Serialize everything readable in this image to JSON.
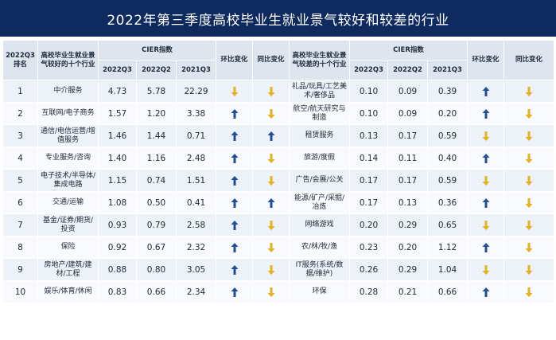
{
  "title": "2022年第三季度高校毕业生就业景气较好和较差的行业",
  "headers": {
    "rank": "2022Q3排名",
    "good_industry": "高校毕业生就业景气较好的十个行业",
    "bad_industry": "高校毕业生就业景气较差的十个行业",
    "cier": "CIER指数",
    "q3_2022": "2022Q3",
    "q2_2022": "2022Q2",
    "q3_2021": "2021Q3",
    "qoq": "环比变化",
    "yoy": "同比变化"
  },
  "colors": {
    "up": "#1f4e9c",
    "down": "#e8b21c",
    "header_bg": "#dfe5ef",
    "title_bg": "#0e2a5e"
  },
  "rows": [
    {
      "rank": "1",
      "good": "中介服务",
      "g1": "4.73",
      "g2": "5.78",
      "g3": "22.29",
      "gqoq": "down",
      "gyoy": "down",
      "bad": "礼品/玩具/工艺美术/奢侈品",
      "b1": "0.10",
      "b2": "0.09",
      "b3": "0.39",
      "bqoq": "up",
      "byoy": "down"
    },
    {
      "rank": "2",
      "good": "互联网/电子商务",
      "g1": "1.57",
      "g2": "1.20",
      "g3": "3.38",
      "gqoq": "up",
      "gyoy": "down",
      "bad": "航空/航天研究与制造",
      "b1": "0.10",
      "b2": "0.09",
      "b3": "0.20",
      "bqoq": "up",
      "byoy": "down"
    },
    {
      "rank": "3",
      "good": "通信/电信运营/增值服务",
      "g1": "1.46",
      "g2": "1.44",
      "g3": "0.71",
      "gqoq": "up",
      "gyoy": "up",
      "bad": "租赁服务",
      "b1": "0.13",
      "b2": "0.17",
      "b3": "0.59",
      "bqoq": "down",
      "byoy": "down"
    },
    {
      "rank": "4",
      "good": "专业服务/咨询",
      "g1": "1.40",
      "g2": "1.16",
      "g3": "2.48",
      "gqoq": "up",
      "gyoy": "down",
      "bad": "旅游/度假",
      "b1": "0.14",
      "b2": "0.11",
      "b3": "0.40",
      "bqoq": "up",
      "byoy": "down"
    },
    {
      "rank": "5",
      "good": "电子技术/半导体/集成电路",
      "g1": "1.15",
      "g2": "0.74",
      "g3": "1.51",
      "gqoq": "up",
      "gyoy": "down",
      "bad": "广告/会展/公关",
      "b1": "0.17",
      "b2": "0.17",
      "b3": "0.59",
      "bqoq": "down",
      "byoy": "down"
    },
    {
      "rank": "6",
      "good": "交通/运输",
      "g1": "1.08",
      "g2": "0.50",
      "g3": "0.41",
      "gqoq": "up",
      "gyoy": "up",
      "bad": "能源/矿产/采掘/冶炼",
      "b1": "0.17",
      "b2": "0.13",
      "b3": "0.36",
      "bqoq": "up",
      "byoy": "down"
    },
    {
      "rank": "7",
      "good": "基金/证券/期货/投资",
      "g1": "0.93",
      "g2": "0.79",
      "g3": "2.58",
      "gqoq": "up",
      "gyoy": "down",
      "bad": "网络游戏",
      "b1": "0.20",
      "b2": "0.29",
      "b3": "0.65",
      "bqoq": "down",
      "byoy": "down"
    },
    {
      "rank": "8",
      "good": "保险",
      "g1": "0.92",
      "g2": "0.67",
      "g3": "2.32",
      "gqoq": "up",
      "gyoy": "down",
      "bad": "农/林/牧/渔",
      "b1": "0.23",
      "b2": "0.20",
      "b3": "1.12",
      "bqoq": "up",
      "byoy": "down"
    },
    {
      "rank": "9",
      "good": "房地产/建筑/建材/工程",
      "g1": "0.88",
      "g2": "0.80",
      "g3": "3.05",
      "gqoq": "up",
      "gyoy": "down",
      "bad": "IT服务(系统/数据/维护)",
      "b1": "0.26",
      "b2": "0.29",
      "b3": "1.04",
      "bqoq": "down",
      "byoy": "down"
    },
    {
      "rank": "10",
      "good": "娱乐/体育/休闲",
      "g1": "0.83",
      "g2": "0.66",
      "g3": "2.34",
      "gqoq": "up",
      "gyoy": "down",
      "bad": "环保",
      "b1": "0.28",
      "b2": "0.21",
      "b3": "0.66",
      "bqoq": "up",
      "byoy": "down"
    }
  ]
}
